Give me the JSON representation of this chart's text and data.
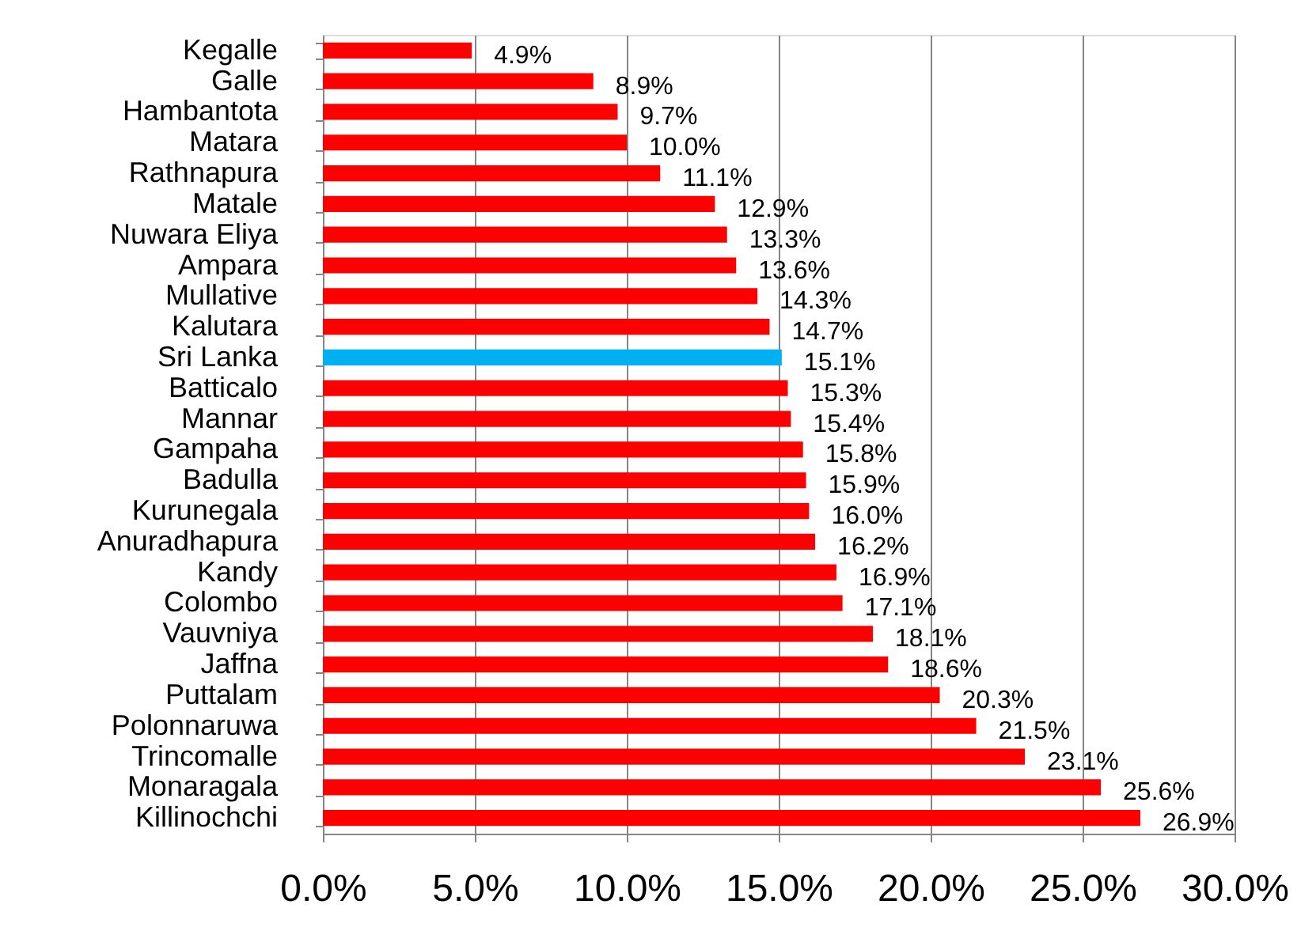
{
  "chart_data": {
    "type": "bar",
    "orientation": "horizontal",
    "categories": [
      "Kegalle",
      "Galle",
      "Hambantota",
      "Matara",
      "Rathnapura",
      "Matale",
      "Nuwara Eliya",
      "Ampara",
      "Mullative",
      "Kalutara",
      "Sri Lanka",
      "Batticalo",
      "Mannar",
      "Gampaha",
      "Badulla",
      "Kurunegala",
      "Anuradhapura",
      "Kandy",
      "Colombo",
      "Vauvniya",
      "Jaffna",
      "Puttalam",
      "Polonnaruwa",
      "Trincomalle",
      "Monaragala",
      "Killinochchi"
    ],
    "values": [
      4.9,
      8.9,
      9.7,
      10.0,
      11.1,
      12.9,
      13.3,
      13.6,
      14.3,
      14.7,
      15.1,
      15.3,
      15.4,
      15.8,
      15.9,
      16.0,
      16.2,
      16.9,
      17.1,
      18.1,
      18.6,
      20.3,
      21.5,
      23.1,
      25.6,
      26.9
    ],
    "colors": [
      "#ff0000",
      "#ff0000",
      "#ff0000",
      "#ff0000",
      "#ff0000",
      "#ff0000",
      "#ff0000",
      "#ff0000",
      "#ff0000",
      "#ff0000",
      "#00b0f0",
      "#ff0000",
      "#ff0000",
      "#ff0000",
      "#ff0000",
      "#ff0000",
      "#ff0000",
      "#ff0000",
      "#ff0000",
      "#ff0000",
      "#ff0000",
      "#ff0000",
      "#ff0000",
      "#ff0000",
      "#ff0000",
      "#ff0000"
    ],
    "value_labels": [
      "4.9%",
      "8.9%",
      "9.7%",
      "10.0%",
      "11.1%",
      "12.9%",
      "13.3%",
      "13.6%",
      "14.3%",
      "14.7%",
      "15.1%",
      "15.3%",
      "15.4%",
      "15.8%",
      "15.9%",
      "16.0%",
      "16.2%",
      "16.9%",
      "17.1%",
      "18.1%",
      "18.6%",
      "20.3%",
      "21.5%",
      "23.1%",
      "25.6%",
      "26.9%"
    ],
    "xlim": [
      0,
      30
    ],
    "xticks": [
      {
        "value": 0,
        "label": "0.0%"
      },
      {
        "value": 5,
        "label": "5.0%"
      },
      {
        "value": 10,
        "label": "10.0%"
      },
      {
        "value": 15,
        "label": "15.0%"
      },
      {
        "value": 20,
        "label": "20.0%"
      },
      {
        "value": 25,
        "label": "25.0%"
      },
      {
        "value": 30,
        "label": "30.0%"
      }
    ],
    "grid": "x"
  }
}
